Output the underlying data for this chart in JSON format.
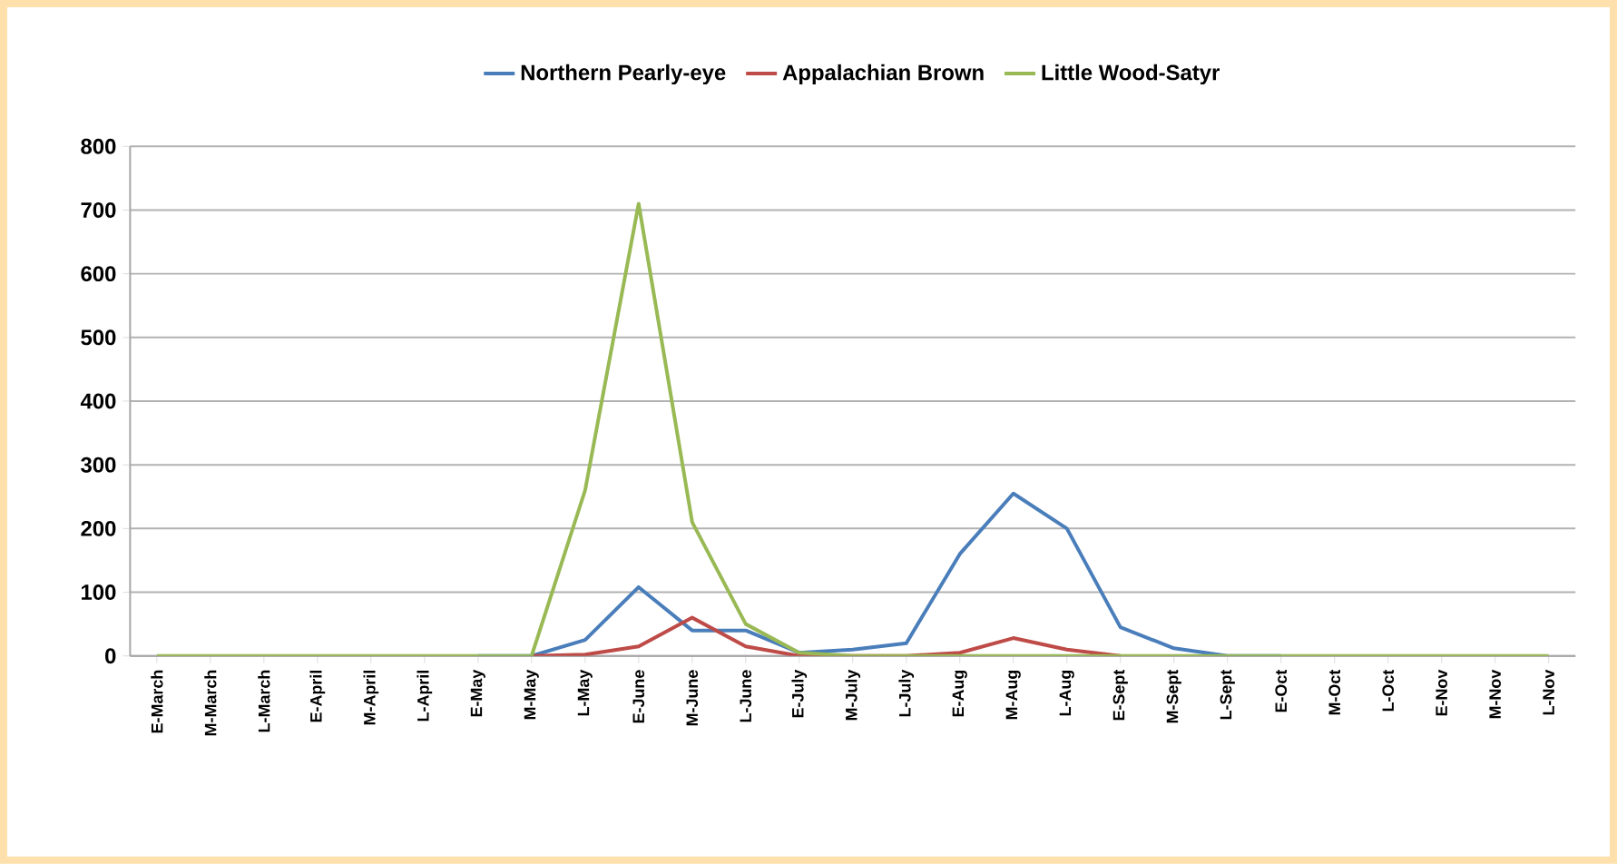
{
  "chart_data": {
    "type": "line",
    "categories": [
      "E-March",
      "M-March",
      "L-March",
      "E-April",
      "M-April",
      "L-April",
      "E-May",
      "M-May",
      "L-May",
      "E-June",
      "M-June",
      "L-June",
      "E-July",
      "M-July",
      "L-July",
      "E-Aug",
      "M-Aug",
      "L-Aug",
      "E-Sept",
      "M-Sept",
      "L-Sept",
      "E-Oct",
      "M-Oct",
      "L-Oct",
      "E-Nov",
      "M-Nov",
      "L-Nov"
    ],
    "series": [
      {
        "name": "Northern Pearly-eye",
        "color": "#4a7ebb",
        "values": [
          null,
          null,
          null,
          null,
          null,
          null,
          0,
          0,
          25,
          108,
          40,
          40,
          5,
          10,
          20,
          160,
          255,
          200,
          45,
          12,
          0,
          0,
          null,
          null,
          null,
          null,
          null
        ]
      },
      {
        "name": "Appalachian Brown",
        "color": "#be4b48",
        "values": [
          null,
          null,
          null,
          null,
          null,
          null,
          null,
          0,
          2,
          15,
          60,
          15,
          0,
          0,
          0,
          5,
          28,
          10,
          0,
          null,
          null,
          null,
          null,
          null,
          null,
          null,
          null
        ]
      },
      {
        "name": "Little Wood-Satyr",
        "color": "#98b954",
        "values": [
          0,
          0,
          0,
          0,
          0,
          0,
          0,
          0,
          260,
          710,
          210,
          50,
          5,
          0,
          0,
          0,
          0,
          0,
          0,
          0,
          0,
          0,
          0,
          0,
          0,
          0,
          0
        ]
      }
    ],
    "ylim": [
      0,
      800
    ],
    "yticks": [
      0,
      100,
      200,
      300,
      400,
      500,
      600,
      700,
      800
    ],
    "grid": "y",
    "legend": "top",
    "marker": "none",
    "line_style": "solid"
  }
}
